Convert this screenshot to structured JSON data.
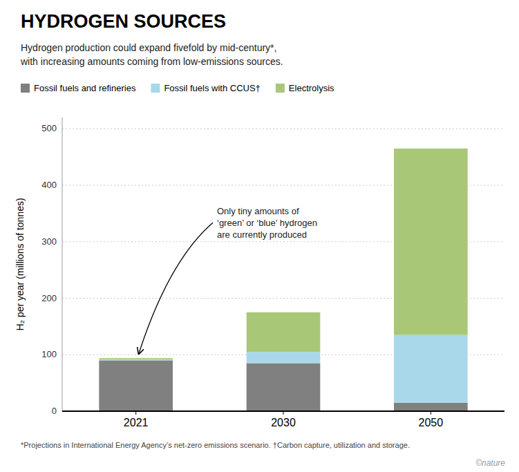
{
  "chart_data": {
    "type": "bar",
    "stacked": true,
    "title": "HYDROGEN SOURCES",
    "subtitle": "Hydrogen production could expand fivefold by mid-century*,\nwith increasing amounts coming from low-emissions sources.",
    "footnote": "*Projections in International Energy Agency’s net-zero emissions scenario. †Carbon capture, utilization and storage.",
    "credit": "©nature",
    "categories": [
      "2021",
      "2030",
      "2050"
    ],
    "series": [
      {
        "name": "Fossil fuels and refineries",
        "color": "#808080",
        "values": [
          90,
          85,
          15
        ]
      },
      {
        "name": "Fossil fuels with CCUS†",
        "color": "#a8d8ea",
        "values": [
          2,
          20,
          120
        ]
      },
      {
        "name": "Electrolysis",
        "color": "#a8c878",
        "values": [
          2,
          70,
          330
        ]
      }
    ],
    "ylabel": "H₂ per year (millions of tonnes)",
    "ylim": [
      0,
      520
    ],
    "yticks": [
      0,
      100,
      200,
      300,
      400,
      500
    ],
    "grid": true,
    "legend": "top-left",
    "annotations": [
      {
        "text": "Only tiny amounts of\n‘green’ or ‘blue’ hydrogen\nare currently produced"
      }
    ]
  }
}
